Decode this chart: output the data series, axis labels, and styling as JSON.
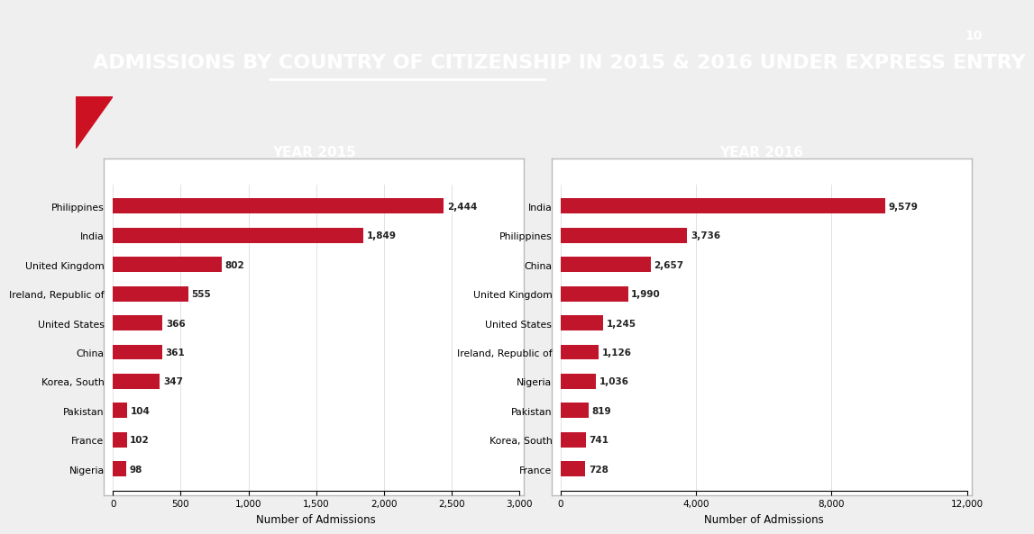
{
  "title_pre": "ADMISSIONS BY ",
  "title_underlined": "COUNTRY OF CITIZENSHIP",
  "title_post": " IN 2015 & 2016 UNDER EXPRESS ENTRY",
  "title_bg_color": "#CC1122",
  "title_text_color": "#FFFFFF",
  "page_number": "10",
  "chart_bg_color": "#FFFFFF",
  "outer_bg_color": "#EFEFEF",
  "bar_color": "#C0152A",
  "panel_border_color": "#BBBBBB",
  "year2015": {
    "title": "YEAR 2015",
    "title_bg": "#4D4D4D",
    "title_text_color": "#FFFFFF",
    "countries": [
      "Philippines",
      "India",
      "United Kingdom",
      "Ireland, Republic of",
      "United States",
      "China",
      "Korea, South",
      "Pakistan",
      "France",
      "Nigeria"
    ],
    "values": [
      2444,
      1849,
      802,
      555,
      366,
      361,
      347,
      104,
      102,
      98
    ],
    "xlim": [
      0,
      3000
    ],
    "xticks": [
      0,
      500,
      1000,
      1500,
      2000,
      2500,
      3000
    ],
    "xtick_labels": [
      "0",
      "500",
      "1,000",
      "1,500",
      "2,000",
      "2,500",
      "3,000"
    ],
    "xlabel": "Number of Admissions"
  },
  "year2016": {
    "title": "YEAR 2016",
    "title_bg": "#4D4D4D",
    "title_text_color": "#FFFFFF",
    "countries": [
      "India",
      "Philippines",
      "China",
      "United Kingdom",
      "United States",
      "Ireland, Republic of",
      "Nigeria",
      "Pakistan",
      "Korea, South",
      "France"
    ],
    "values": [
      9579,
      3736,
      2657,
      1990,
      1245,
      1126,
      1036,
      819,
      741,
      728
    ],
    "xlim": [
      0,
      12000
    ],
    "xticks": [
      0,
      4000,
      8000,
      12000
    ],
    "xtick_labels": [
      "0",
      "4,000",
      "8,000",
      "12,000"
    ],
    "xlabel": "Number of Admissions"
  }
}
